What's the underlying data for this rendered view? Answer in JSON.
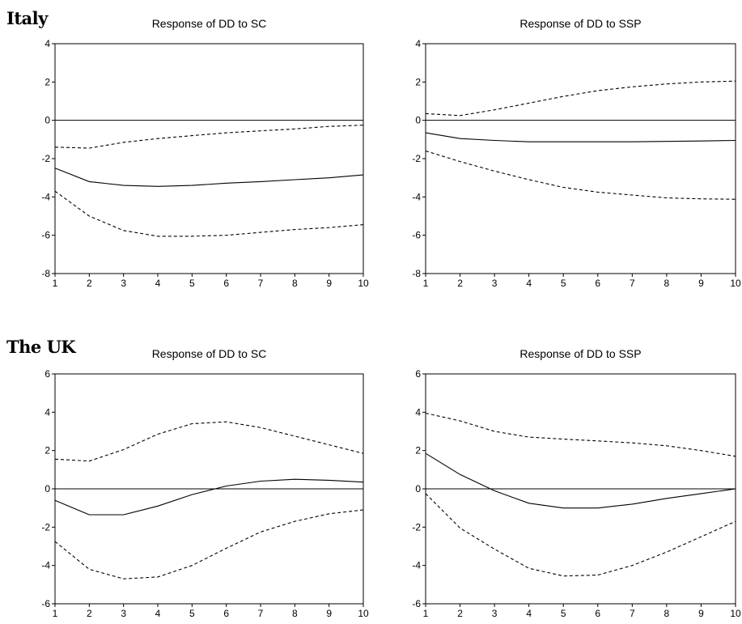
{
  "labels": {
    "italy": "Italy",
    "uk": "The UK"
  },
  "chart_data": [
    {
      "type": "line",
      "title": "Response of DD to SC",
      "x": [
        1,
        2,
        3,
        4,
        5,
        6,
        7,
        8,
        9,
        10
      ],
      "ylim": [
        -8,
        4
      ],
      "yticks": [
        4,
        2,
        0,
        -2,
        -4,
        -6,
        -8
      ],
      "series": [
        {
          "style": "solid",
          "values": [
            -2.5,
            -3.2,
            -3.4,
            -3.45,
            -3.4,
            -3.28,
            -3.2,
            -3.1,
            -3.0,
            -2.85
          ]
        },
        {
          "style": "dashed",
          "values": [
            -1.4,
            -1.45,
            -1.15,
            -0.95,
            -0.8,
            -0.65,
            -0.55,
            -0.45,
            -0.32,
            -0.25
          ]
        },
        {
          "style": "dashed",
          "values": [
            -3.7,
            -5.0,
            -5.75,
            -6.05,
            -6.05,
            -6.0,
            -5.85,
            -5.7,
            -5.6,
            -5.45
          ]
        }
      ]
    },
    {
      "type": "line",
      "title": "Response of DD to SSP",
      "x": [
        1,
        2,
        3,
        4,
        5,
        6,
        7,
        8,
        9,
        10
      ],
      "ylim": [
        -8,
        4
      ],
      "yticks": [
        4,
        2,
        0,
        -2,
        -4,
        -6,
        -8
      ],
      "series": [
        {
          "style": "solid",
          "values": [
            -0.65,
            -0.95,
            -1.05,
            -1.12,
            -1.12,
            -1.12,
            -1.12,
            -1.1,
            -1.08,
            -1.05
          ]
        },
        {
          "style": "dashed",
          "values": [
            0.35,
            0.25,
            0.55,
            0.9,
            1.25,
            1.55,
            1.75,
            1.9,
            2.0,
            2.05
          ]
        },
        {
          "style": "dashed",
          "values": [
            -1.6,
            -2.15,
            -2.65,
            -3.1,
            -3.5,
            -3.75,
            -3.9,
            -4.05,
            -4.1,
            -4.12
          ]
        }
      ]
    },
    {
      "type": "line",
      "title": "Response of DD to SC",
      "x": [
        1,
        2,
        3,
        4,
        5,
        6,
        7,
        8,
        9,
        10
      ],
      "ylim": [
        -6,
        6
      ],
      "yticks": [
        6,
        4,
        2,
        0,
        -2,
        -4,
        -6
      ],
      "series": [
        {
          "style": "solid",
          "values": [
            -0.6,
            -1.35,
            -1.35,
            -0.9,
            -0.3,
            0.15,
            0.4,
            0.5,
            0.45,
            0.35
          ]
        },
        {
          "style": "dashed",
          "values": [
            1.55,
            1.45,
            2.05,
            2.85,
            3.4,
            3.5,
            3.2,
            2.75,
            2.3,
            1.85
          ]
        },
        {
          "style": "dashed",
          "values": [
            -2.75,
            -4.2,
            -4.7,
            -4.6,
            -4.0,
            -3.1,
            -2.25,
            -1.7,
            -1.3,
            -1.1
          ]
        }
      ]
    },
    {
      "type": "line",
      "title": "Response of DD to SSP",
      "x": [
        1,
        2,
        3,
        4,
        5,
        6,
        7,
        8,
        9,
        10
      ],
      "ylim": [
        -6,
        6
      ],
      "yticks": [
        6,
        4,
        2,
        0,
        -2,
        -4,
        -6
      ],
      "series": [
        {
          "style": "solid",
          "values": [
            1.85,
            0.75,
            -0.1,
            -0.75,
            -1.0,
            -1.0,
            -0.8,
            -0.5,
            -0.25,
            0.0
          ]
        },
        {
          "style": "dashed",
          "values": [
            3.95,
            3.55,
            3.0,
            2.7,
            2.6,
            2.5,
            2.4,
            2.25,
            2.0,
            1.7
          ]
        },
        {
          "style": "dashed",
          "values": [
            -0.25,
            -2.05,
            -3.15,
            -4.15,
            -4.55,
            -4.5,
            -4.0,
            -3.3,
            -2.5,
            -1.7
          ]
        }
      ]
    }
  ]
}
